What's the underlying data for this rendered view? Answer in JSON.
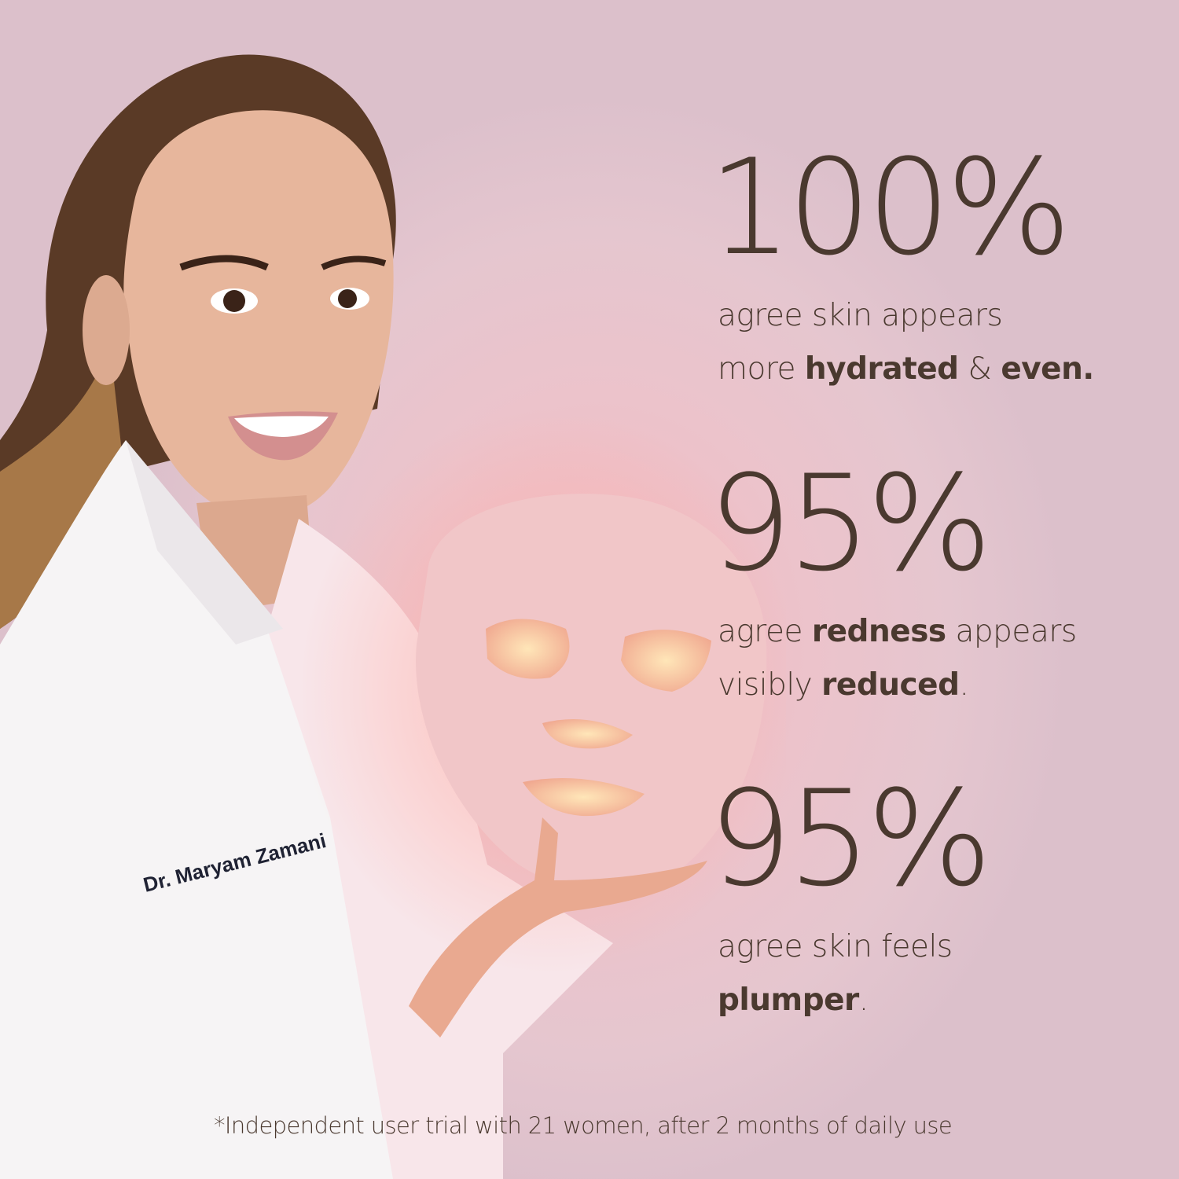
{
  "stats": [
    {
      "value": "100%",
      "line1": [
        {
          "t": "agree skin appears",
          "b": false
        }
      ],
      "line2": [
        {
          "t": "more ",
          "b": false
        },
        {
          "t": "hydrated",
          "b": true
        },
        {
          "t": " & ",
          "b": false
        },
        {
          "t": "even.",
          "b": true
        }
      ]
    },
    {
      "value": "95%",
      "line1": [
        {
          "t": "agree ",
          "b": false
        },
        {
          "t": "redness",
          "b": true
        },
        {
          "t": " appears",
          "b": false
        }
      ],
      "line2": [
        {
          "t": "visibly ",
          "b": false
        },
        {
          "t": "reduced",
          "b": true
        },
        {
          "t": ".",
          "b": false
        }
      ]
    },
    {
      "value": "95%",
      "line1": [
        {
          "t": "agree skin feels",
          "b": false
        }
      ],
      "line2": [
        {
          "t": "plumper",
          "b": true
        },
        {
          "t": ".",
          "b": false
        }
      ]
    }
  ],
  "footnote": "*Independent user trial with 21 women, after 2 months of daily use",
  "coat_embroidery": "Dr. Maryam Zamani",
  "colors": {
    "text": "#4a392f",
    "background": "#e8c4cc",
    "mask": "#f1c6c8",
    "mask_glow": "#ffd9a8"
  }
}
